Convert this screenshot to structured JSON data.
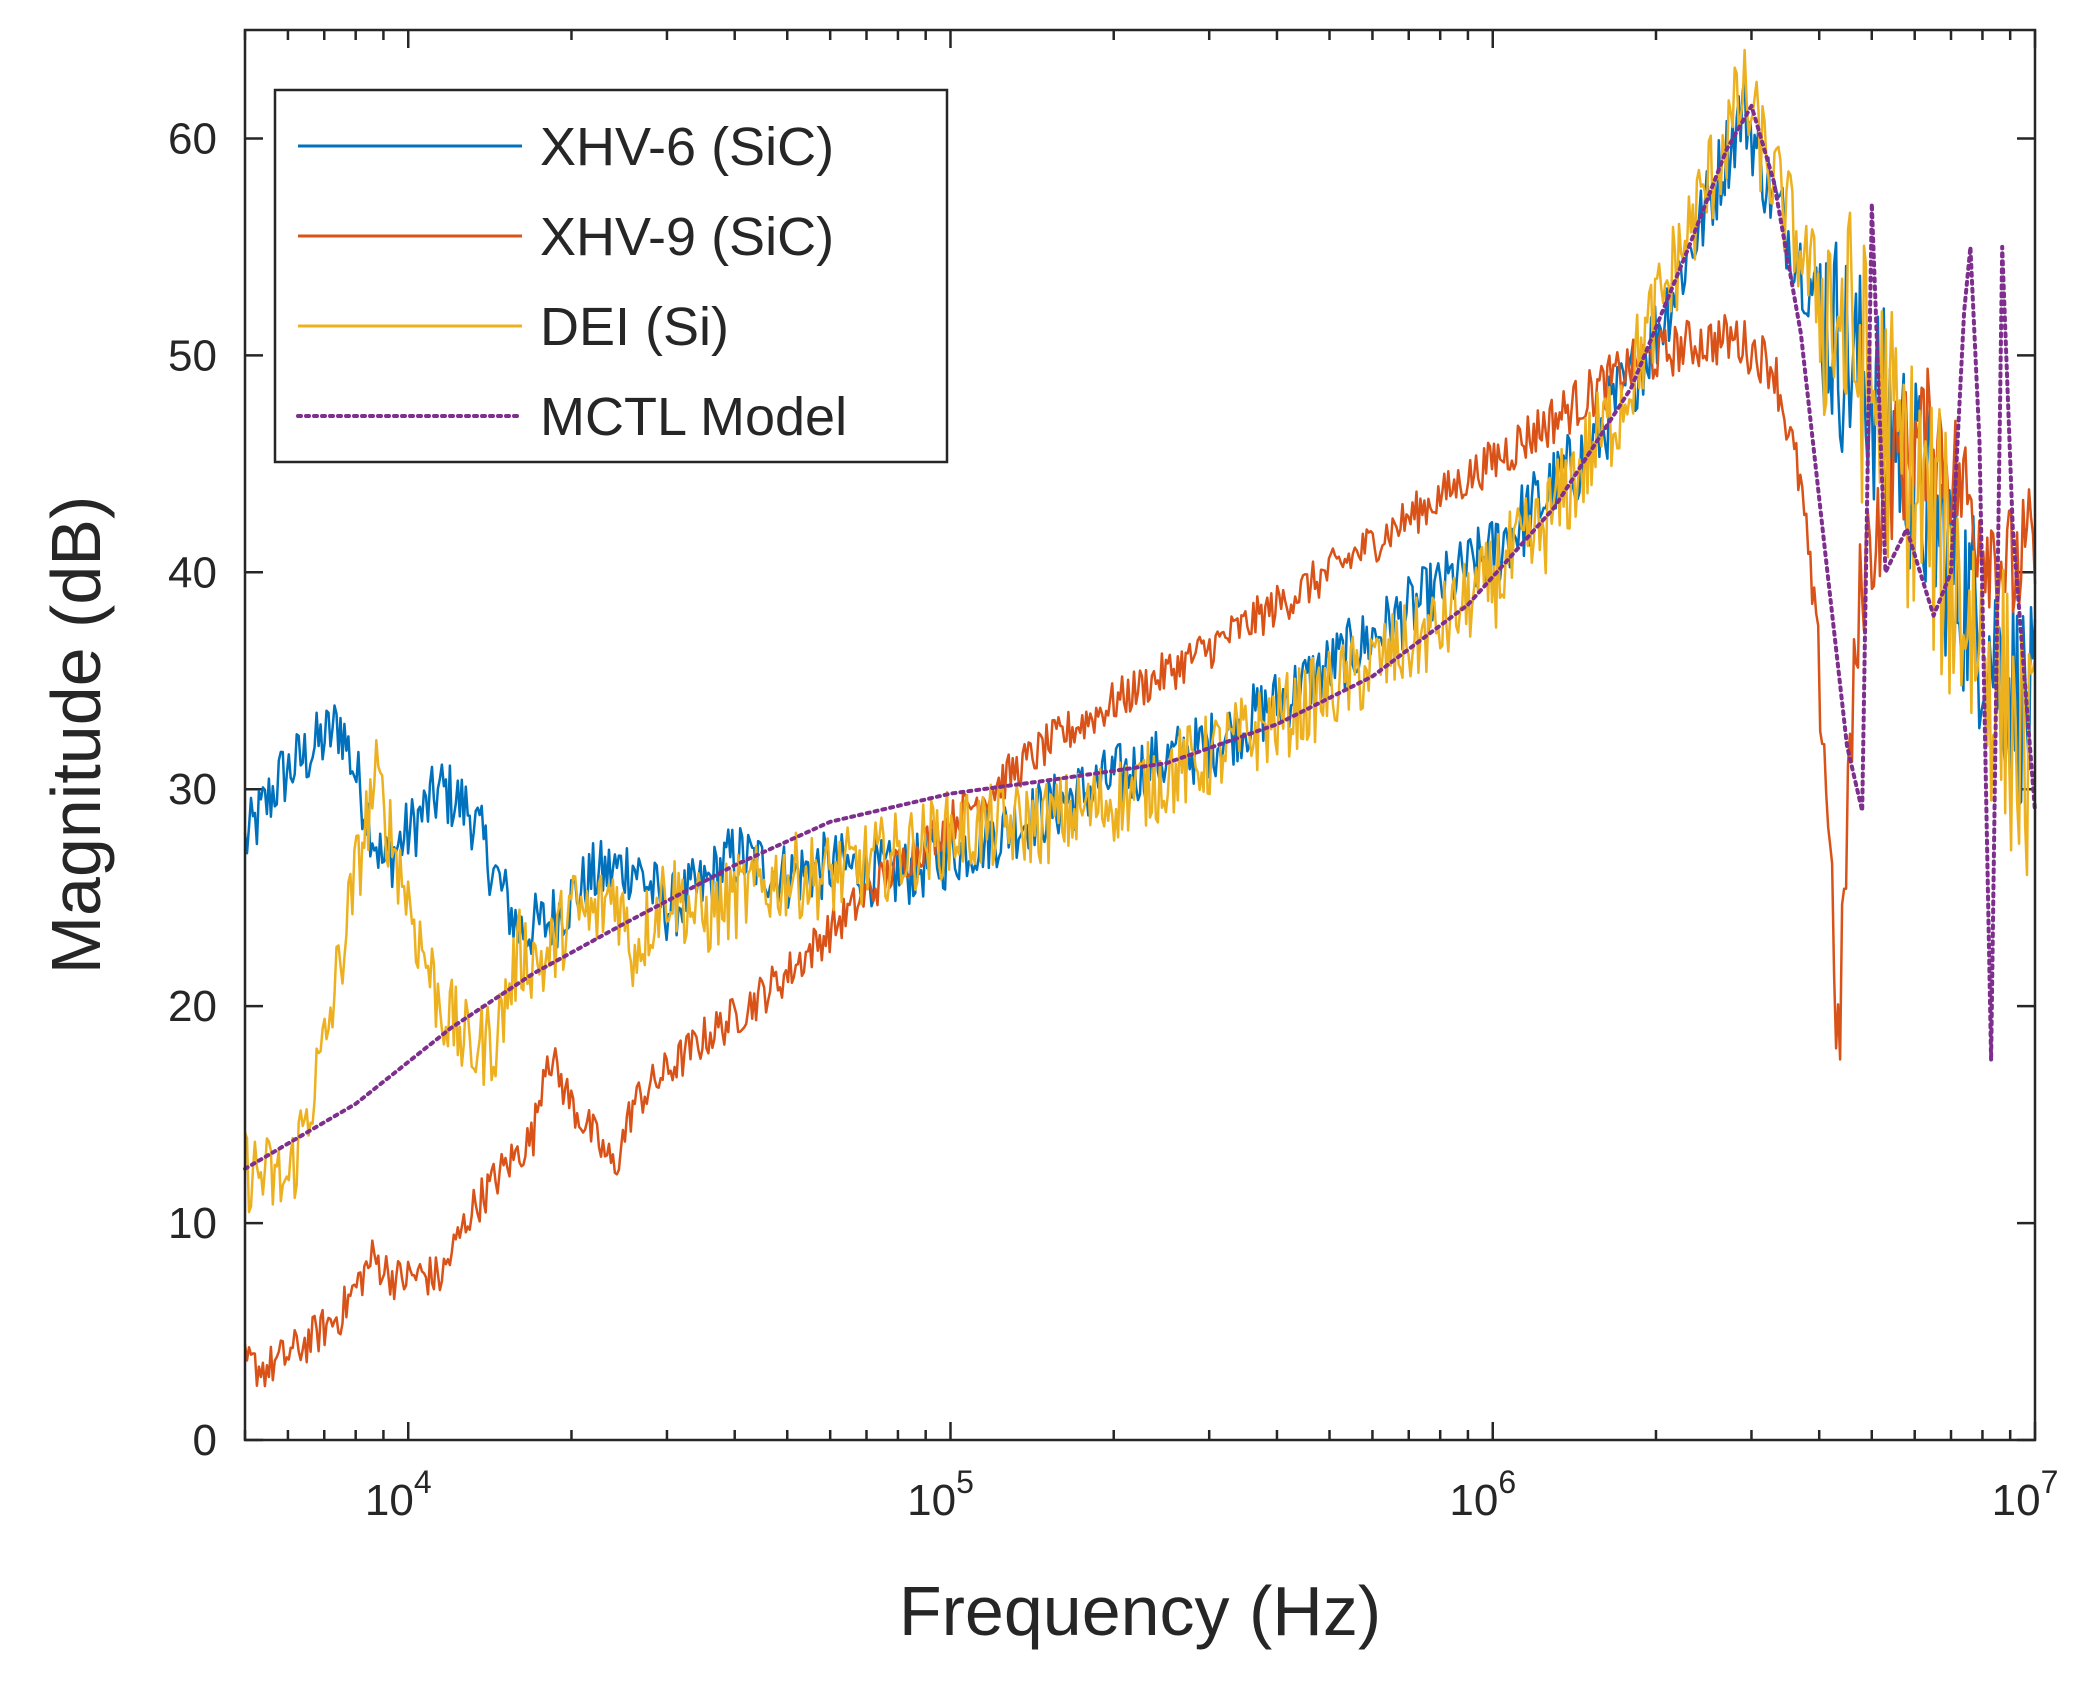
{
  "chart_data": {
    "type": "line",
    "xscale": "log",
    "xlabel": "Frequency (Hz)",
    "ylabel": "Magnitude (dB)",
    "xlim": [
      5000,
      10000000
    ],
    "ylim": [
      0,
      65
    ],
    "x_ticks": [
      {
        "value": 10000,
        "base": "10",
        "exp": "4"
      },
      {
        "value": 100000,
        "base": "10",
        "exp": "5"
      },
      {
        "value": 1000000,
        "base": "10",
        "exp": "6"
      },
      {
        "value": 10000000,
        "base": "10",
        "exp": "7"
      }
    ],
    "y_ticks": [
      {
        "value": 0,
        "label": "0"
      },
      {
        "value": 10,
        "label": "10"
      },
      {
        "value": 20,
        "label": "20"
      },
      {
        "value": 30,
        "label": "30"
      },
      {
        "value": 40,
        "label": "40"
      },
      {
        "value": 50,
        "label": "50"
      },
      {
        "value": 60,
        "label": "60"
      }
    ],
    "legend_position": "top-left",
    "series": [
      {
        "name": "XHV-6 (SiC)",
        "color": "#0072BD",
        "dash": "solid",
        "noise": 1.6,
        "points": [
          [
            5000,
            27.5
          ],
          [
            5800,
            30.5
          ],
          [
            7500,
            33
          ],
          [
            9000,
            26.5
          ],
          [
            11500,
            30
          ],
          [
            13000,
            29
          ],
          [
            14500,
            26
          ],
          [
            16000,
            23.5
          ],
          [
            18000,
            23.8
          ],
          [
            22000,
            26
          ],
          [
            26000,
            26.5
          ],
          [
            30000,
            24.5
          ],
          [
            35000,
            25.5
          ],
          [
            40000,
            27
          ],
          [
            50000,
            26
          ],
          [
            60000,
            26.5
          ],
          [
            80000,
            26
          ],
          [
            100000,
            27
          ],
          [
            150000,
            29
          ],
          [
            200000,
            30.5
          ],
          [
            300000,
            32
          ],
          [
            400000,
            34
          ],
          [
            600000,
            37
          ],
          [
            1000000,
            41
          ],
          [
            1500000,
            45.5
          ],
          [
            2000000,
            51
          ],
          [
            2500000,
            57
          ],
          [
            2900000,
            61.5
          ],
          [
            3200000,
            58
          ],
          [
            3800000,
            53.5
          ],
          [
            4500000,
            50
          ],
          [
            5500000,
            46.5
          ],
          [
            7000000,
            40.5
          ],
          [
            8500000,
            36
          ],
          [
            10000000,
            33
          ]
        ]
      },
      {
        "name": "XHV-9 (SiC)",
        "color": "#D95319",
        "dash": "solid",
        "noise": 1.0,
        "points": [
          [
            5000,
            3.5
          ],
          [
            5500,
            3.3
          ],
          [
            6500,
            4.5
          ],
          [
            7500,
            5.8
          ],
          [
            8600,
            8.4
          ],
          [
            9500,
            7.4
          ],
          [
            10500,
            7.6
          ],
          [
            11500,
            7.5
          ],
          [
            13000,
            10.5
          ],
          [
            15000,
            12.5
          ],
          [
            17000,
            14
          ],
          [
            18000,
            18
          ],
          [
            20000,
            15.5
          ],
          [
            22000,
            14
          ],
          [
            24000,
            12.5
          ],
          [
            26000,
            15.5
          ],
          [
            30000,
            17
          ],
          [
            35000,
            18.5
          ],
          [
            40000,
            19.5
          ],
          [
            50000,
            21.5
          ],
          [
            60000,
            23.5
          ],
          [
            80000,
            26.5
          ],
          [
            100000,
            28.5
          ],
          [
            150000,
            32
          ],
          [
            200000,
            34
          ],
          [
            300000,
            36.5
          ],
          [
            500000,
            40
          ],
          [
            800000,
            43.5
          ],
          [
            1200000,
            46.5
          ],
          [
            1800000,
            49.5
          ],
          [
            2300000,
            50.5
          ],
          [
            2800000,
            50.8
          ],
          [
            3300000,
            49.5
          ],
          [
            3700000,
            44
          ],
          [
            4000000,
            36
          ],
          [
            4200000,
            27
          ],
          [
            4350000,
            17
          ],
          [
            4500000,
            29
          ],
          [
            4800000,
            40
          ],
          [
            5500000,
            45
          ],
          [
            6500000,
            46.5
          ],
          [
            8000000,
            42
          ],
          [
            9000000,
            40
          ],
          [
            10000000,
            41
          ]
        ]
      },
      {
        "name": "DEI (Si)",
        "color": "#EDB120",
        "dash": "solid",
        "noise": 2.0,
        "points": [
          [
            5000,
            12.5
          ],
          [
            6000,
            11.8
          ],
          [
            7000,
            18
          ],
          [
            8000,
            26
          ],
          [
            8700,
            30.5
          ],
          [
            9500,
            27
          ],
          [
            10500,
            23
          ],
          [
            11500,
            20
          ],
          [
            13000,
            18
          ],
          [
            14500,
            18.5
          ],
          [
            16000,
            22.5
          ],
          [
            18000,
            22
          ],
          [
            20000,
            24.5
          ],
          [
            22000,
            24
          ],
          [
            24000,
            25.5
          ],
          [
            26000,
            22.5
          ],
          [
            30000,
            25.5
          ],
          [
            35000,
            24
          ],
          [
            40000,
            25
          ],
          [
            50000,
            26
          ],
          [
            60000,
            26
          ],
          [
            80000,
            27
          ],
          [
            100000,
            28
          ],
          [
            150000,
            28.5
          ],
          [
            200000,
            29.5
          ],
          [
            300000,
            31.5
          ],
          [
            500000,
            34.5
          ],
          [
            800000,
            37.5
          ],
          [
            1200000,
            41.5
          ],
          [
            1700000,
            47.5
          ],
          [
            2200000,
            54.5
          ],
          [
            2600000,
            59
          ],
          [
            2900000,
            62
          ],
          [
            3200000,
            59
          ],
          [
            3800000,
            54
          ],
          [
            4500000,
            51
          ],
          [
            5500000,
            46
          ],
          [
            7000000,
            40
          ],
          [
            8500000,
            35
          ],
          [
            10000000,
            30
          ]
        ]
      },
      {
        "name": "MCTL Model",
        "color": "#7E2F8E",
        "dash": "dotted",
        "noise": 0,
        "points": [
          [
            5000,
            12.5
          ],
          [
            8000,
            15.5
          ],
          [
            12000,
            19
          ],
          [
            17000,
            21.5
          ],
          [
            25000,
            23.8
          ],
          [
            40000,
            26.5
          ],
          [
            60000,
            28.5
          ],
          [
            100000,
            29.8
          ],
          [
            150000,
            30.4
          ],
          [
            250000,
            31.2
          ],
          [
            400000,
            33
          ],
          [
            600000,
            35.2
          ],
          [
            900000,
            38.5
          ],
          [
            1300000,
            43
          ],
          [
            1800000,
            48.5
          ],
          [
            2300000,
            55
          ],
          [
            2700000,
            59.5
          ],
          [
            3000000,
            61.5
          ],
          [
            3300000,
            58
          ],
          [
            3700000,
            51
          ],
          [
            4100000,
            41
          ],
          [
            4500000,
            32
          ],
          [
            4800000,
            29
          ],
          [
            5000000,
            57
          ],
          [
            5300000,
            40
          ],
          [
            5800000,
            42
          ],
          [
            6500000,
            38
          ],
          [
            7000000,
            40
          ],
          [
            7400000,
            52
          ],
          [
            7600000,
            55
          ],
          [
            7900000,
            46
          ],
          [
            8300000,
            17.5
          ],
          [
            8700000,
            55
          ],
          [
            9100000,
            42
          ],
          [
            10000000,
            29
          ]
        ]
      }
    ]
  }
}
